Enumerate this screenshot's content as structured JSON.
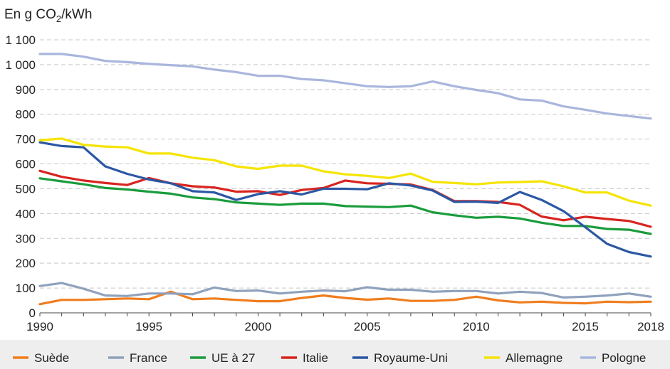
{
  "chart_data": {
    "type": "line",
    "title": "En g CO",
    "title_sub": "2",
    "title_suffix": "/kWh",
    "x": [
      1990,
      1991,
      1992,
      1993,
      1994,
      1995,
      1996,
      1997,
      1998,
      1999,
      2000,
      2001,
      2002,
      2003,
      2004,
      2005,
      2006,
      2007,
      2008,
      2009,
      2010,
      2011,
      2012,
      2013,
      2014,
      2015,
      2016,
      2017,
      2018
    ],
    "xlim": [
      1990,
      2018
    ],
    "ylim": [
      0,
      1100
    ],
    "x_ticks": [
      1990,
      1995,
      2000,
      2005,
      2010,
      2015,
      2018
    ],
    "x_tick_labels": [
      "1990",
      "1995",
      "2000",
      "2005",
      "2010",
      "2015",
      "2018"
    ],
    "y_ticks": [
      0,
      100,
      200,
      300,
      400,
      500,
      600,
      700,
      800,
      900,
      1000,
      1100
    ],
    "y_tick_labels": [
      "0",
      "100",
      "200",
      "300",
      "400",
      "500",
      "600",
      "700",
      "800",
      "900",
      "1 000",
      "1 100"
    ],
    "grid": true,
    "legend_position": "bottom",
    "series": [
      {
        "name": "Suède",
        "color": "#f07d1e",
        "values": [
          35,
          52,
          52,
          55,
          58,
          55,
          85,
          55,
          58,
          52,
          47,
          47,
          60,
          70,
          60,
          53,
          58,
          48,
          48,
          52,
          65,
          50,
          42,
          45,
          40,
          38,
          45,
          43,
          45
        ]
      },
      {
        "name": "France",
        "color": "#8fa1bc",
        "values": [
          108,
          120,
          97,
          70,
          68,
          78,
          78,
          75,
          102,
          88,
          90,
          78,
          85,
          90,
          87,
          103,
          93,
          93,
          85,
          88,
          88,
          78,
          85,
          80,
          62,
          65,
          70,
          78,
          65
        ]
      },
      {
        "name": "UE à 27",
        "color": "#1a9c3c",
        "values": [
          542,
          530,
          518,
          503,
          497,
          488,
          480,
          465,
          458,
          445,
          440,
          435,
          440,
          440,
          430,
          428,
          426,
          432,
          405,
          393,
          383,
          387,
          380,
          363,
          350,
          350,
          338,
          335,
          318
        ]
      },
      {
        "name": "Italie",
        "color": "#d8241f",
        "values": [
          572,
          548,
          533,
          523,
          515,
          543,
          522,
          510,
          505,
          488,
          490,
          475,
          495,
          503,
          533,
          522,
          520,
          517,
          495,
          450,
          450,
          447,
          435,
          388,
          373,
          387,
          378,
          370,
          347
        ]
      },
      {
        "name": "Royaume-Uni",
        "color": "#2b57a3",
        "values": [
          687,
          672,
          667,
          590,
          560,
          537,
          522,
          490,
          485,
          455,
          478,
          490,
          477,
          500,
          500,
          498,
          522,
          513,
          493,
          447,
          448,
          443,
          487,
          455,
          410,
          345,
          278,
          245,
          227
        ]
      },
      {
        "name": "Allemagne",
        "color": "#f5e400",
        "values": [
          695,
          702,
          677,
          670,
          667,
          642,
          642,
          625,
          615,
          590,
          580,
          593,
          593,
          570,
          558,
          552,
          543,
          561,
          528,
          523,
          518,
          525,
          527,
          530,
          510,
          485,
          485,
          452,
          432
        ]
      },
      {
        "name": "Pologne",
        "color": "#a9b6dd",
        "values": [
          1043,
          1043,
          1032,
          1015,
          1010,
          1003,
          998,
          993,
          980,
          970,
          955,
          955,
          942,
          937,
          925,
          913,
          910,
          913,
          932,
          913,
          898,
          885,
          860,
          855,
          832,
          818,
          803,
          793,
          783
        ]
      }
    ]
  }
}
